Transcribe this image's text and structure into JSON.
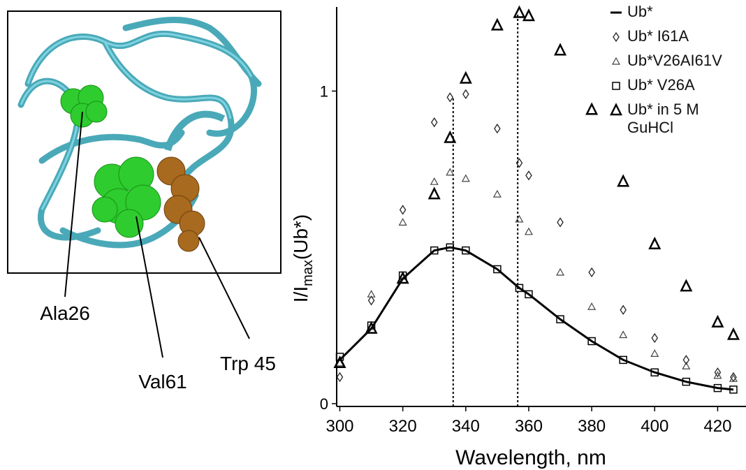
{
  "figure_panel": {
    "labels": [
      "Ala26",
      "Val61",
      "Trp 45"
    ]
  },
  "chart_data": {
    "type": "scatter",
    "x_label": "Wavelength, nm",
    "y_label": {
      "text": "I/I",
      "sub": "max",
      "after": "(Ub*)"
    },
    "x": [
      300,
      310,
      320,
      330,
      335,
      340,
      350,
      357,
      360,
      370,
      380,
      390,
      400,
      410,
      420,
      425
    ],
    "series": [
      {
        "name": "Ub*",
        "color": "#000000",
        "marker": "line",
        "values": [
          0.14,
          0.24,
          0.4,
          0.49,
          0.5,
          0.49,
          0.43,
          0.37,
          0.35,
          0.27,
          0.2,
          0.14,
          0.1,
          0.07,
          0.05,
          0.045
        ]
      },
      {
        "name": "Ub* I61A",
        "color": "#222222",
        "marker": "diamond",
        "values": [
          0.085,
          0.33,
          0.62,
          0.9,
          0.98,
          0.99,
          0.88,
          0.77,
          0.73,
          0.58,
          0.42,
          0.3,
          0.21,
          0.14,
          0.1,
          0.085
        ]
      },
      {
        "name": "Ub*V26AI61V",
        "color": "#444444",
        "marker": "triangle",
        "values": [
          0.13,
          0.35,
          0.58,
          0.71,
          0.74,
          0.72,
          0.67,
          0.59,
          0.55,
          0.42,
          0.31,
          0.22,
          0.16,
          0.12,
          0.09,
          0.08
        ]
      },
      {
        "name": "Ub* V26A",
        "color": "#000000",
        "marker": "square",
        "values": [
          0.15,
          0.25,
          0.41,
          0.49,
          0.5,
          0.49,
          0.43,
          0.37,
          0.35,
          0.27,
          0.2,
          0.14,
          0.1,
          0.07,
          0.05,
          0.045
        ]
      },
      {
        "name": "Ub* in 5 M GuHCl",
        "color": "#000000",
        "marker": "triangle-large",
        "values": [
          0.13,
          0.24,
          0.4,
          0.67,
          0.85,
          1.04,
          1.21,
          1.25,
          1.24,
          1.13,
          0.94,
          0.71,
          0.51,
          0.375,
          0.26,
          0.22
        ]
      }
    ],
    "vlines": [
      336,
      356.5
    ],
    "xlim": [
      299,
      429
    ],
    "ylim": [
      0,
      1.26
    ],
    "xticks": [
      300,
      320,
      340,
      360,
      380,
      400,
      420
    ],
    "yticks": [
      0,
      1
    ],
    "legend": "top-right"
  }
}
